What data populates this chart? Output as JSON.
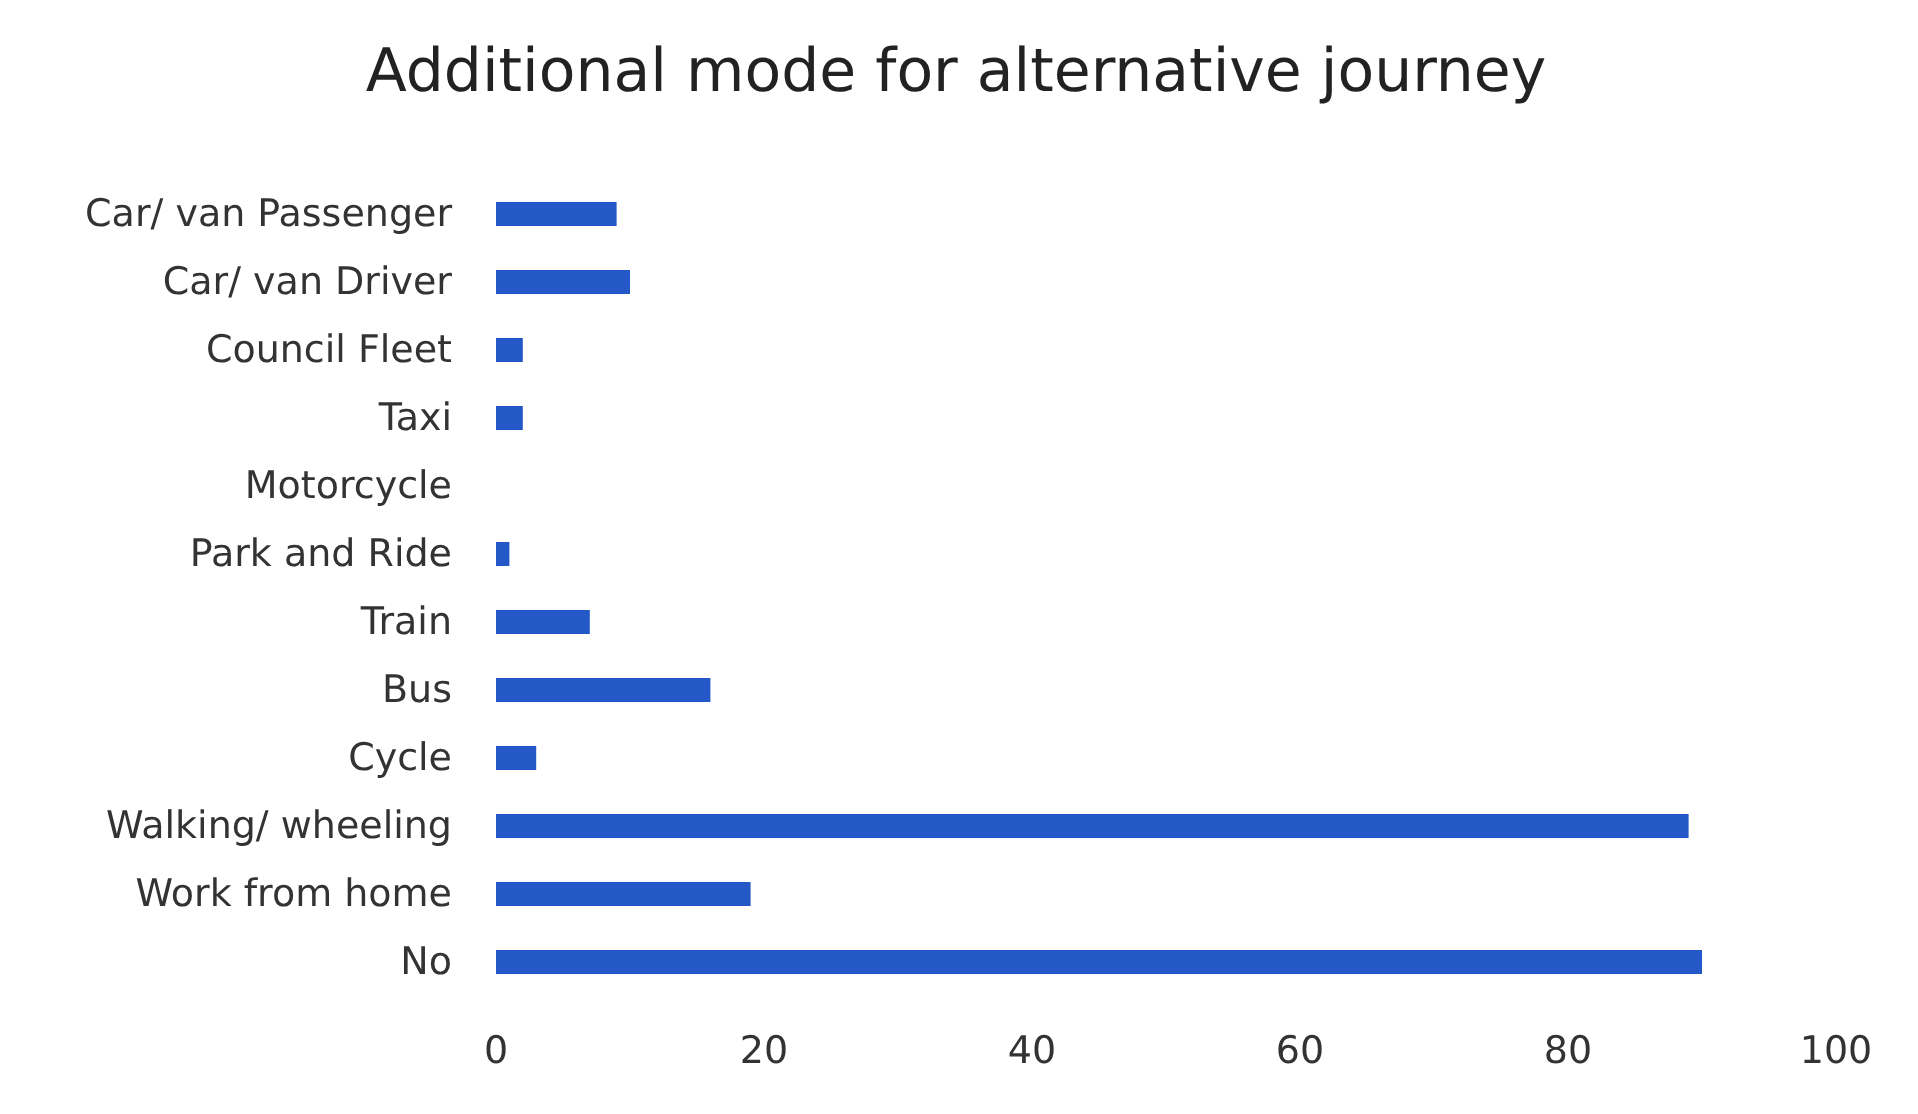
{
  "chart_data": {
    "type": "bar",
    "orientation": "horizontal",
    "title": "Additional mode for alternative journey",
    "categories": [
      "Car/ van Passenger",
      "Car/ van Driver",
      "Council Fleet",
      "Taxi",
      "Motorcycle",
      "Park and Ride",
      "Train",
      "Bus",
      "Cycle",
      "Walking/ wheeling",
      "Work from home",
      "No"
    ],
    "values": [
      9,
      10,
      2,
      2,
      0,
      1,
      7,
      16,
      3,
      89,
      19,
      90
    ],
    "color": "#2458c6",
    "xlim": [
      0,
      100
    ],
    "xticks": [
      0,
      20,
      40,
      60,
      80,
      100
    ],
    "grid": false
  }
}
